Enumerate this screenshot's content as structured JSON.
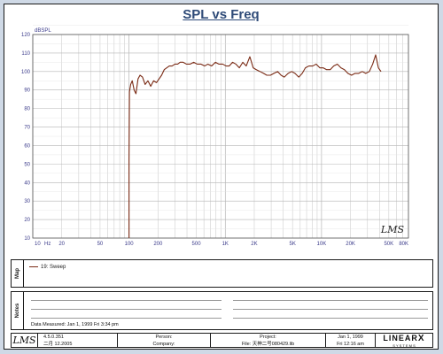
{
  "chart_data": {
    "type": "line",
    "title": "SPL vs Freq",
    "ylabel": "dBSPL",
    "xlabel": "",
    "x_scale": "log",
    "xlim": [
      10,
      80000
    ],
    "ylim": [
      10,
      120
    ],
    "grid": true,
    "yticks": [
      "120",
      "110",
      "100",
      "90",
      "80",
      "70",
      "60",
      "50",
      "40",
      "30",
      "20",
      "10"
    ],
    "xticks": [
      {
        "value": 10,
        "label": "10"
      },
      {
        "value": 20,
        "label": "20"
      },
      {
        "value": 50,
        "label": "50"
      },
      {
        "value": 100,
        "label": "100"
      },
      {
        "value": 200,
        "label": "200"
      },
      {
        "value": 500,
        "label": "500"
      },
      {
        "value": 1000,
        "label": "1K"
      },
      {
        "value": 2000,
        "label": "2K"
      },
      {
        "value": 5000,
        "label": "5K"
      },
      {
        "value": 10000,
        "label": "10K"
      },
      {
        "value": 20000,
        "label": "20K"
      },
      {
        "value": 50000,
        "label": "50K"
      },
      {
        "value": 80000,
        "label": "80K"
      }
    ],
    "x_unit": "Hz",
    "series": [
      {
        "name": "19: Sweep",
        "color": "#7a2a14",
        "x": [
          100,
          100,
          101,
          104,
          108,
          113,
          118,
          124,
          130,
          138,
          147,
          157,
          168,
          180,
          193,
          205,
          218,
          232,
          246,
          262,
          280,
          300,
          320,
          340,
          365,
          395,
          430,
          470,
          510,
          560,
          610,
          660,
          720,
          790,
          860,
          940,
          1020,
          1100,
          1190,
          1290,
          1400,
          1520,
          1650,
          1800,
          1950,
          2100,
          2300,
          2500,
          2700,
          2950,
          3200,
          3500,
          3800,
          4100,
          4500,
          4900,
          5300,
          5800,
          6300,
          6800,
          7400,
          8100,
          8800,
          9600,
          10400,
          11300,
          12300,
          13400,
          14600,
          15900,
          17300,
          18800,
          20500,
          22300,
          24300,
          26500,
          28800,
          31400,
          34000,
          36500,
          39000,
          41500
        ],
        "y": [
          10,
          52,
          89,
          93,
          95,
          90,
          88,
          96,
          98,
          97,
          93,
          95,
          92,
          95,
          94,
          96,
          98,
          101,
          102,
          103,
          103,
          104,
          104,
          105,
          105,
          104,
          104,
          105,
          104,
          104,
          103,
          104,
          103,
          105,
          104,
          104,
          103,
          103,
          105,
          104,
          102,
          105,
          103,
          108,
          102,
          101,
          100,
          99,
          98,
          98,
          99,
          100,
          98,
          97,
          99,
          100,
          99,
          97,
          99,
          102,
          103,
          103,
          104,
          102,
          102,
          101,
          101,
          103,
          104,
          102,
          101,
          99,
          98,
          99,
          99,
          100,
          99,
          100,
          104,
          109,
          102,
          100
        ]
      }
    ]
  },
  "watermark": "LMS",
  "legend_tag": "Map",
  "notes_tag": "Notes",
  "measured": "Data Measured: Jan  1, 1999  Fri  3:34 pm",
  "footer": {
    "logo": "LMS",
    "version_line1": "4.5.0.351",
    "version_line2": "二月 12.2005",
    "person_label": "Person:",
    "company_label": "Company:",
    "project_label": "Project:",
    "file_line": "File: 天神二号080429.lib",
    "date_line1": "Jan  1, 1999",
    "date_line2": "Fri 12:16 am",
    "brand": "LINEAR",
    "brand_x": "X",
    "brand_sub": "S Y S T E M S"
  }
}
